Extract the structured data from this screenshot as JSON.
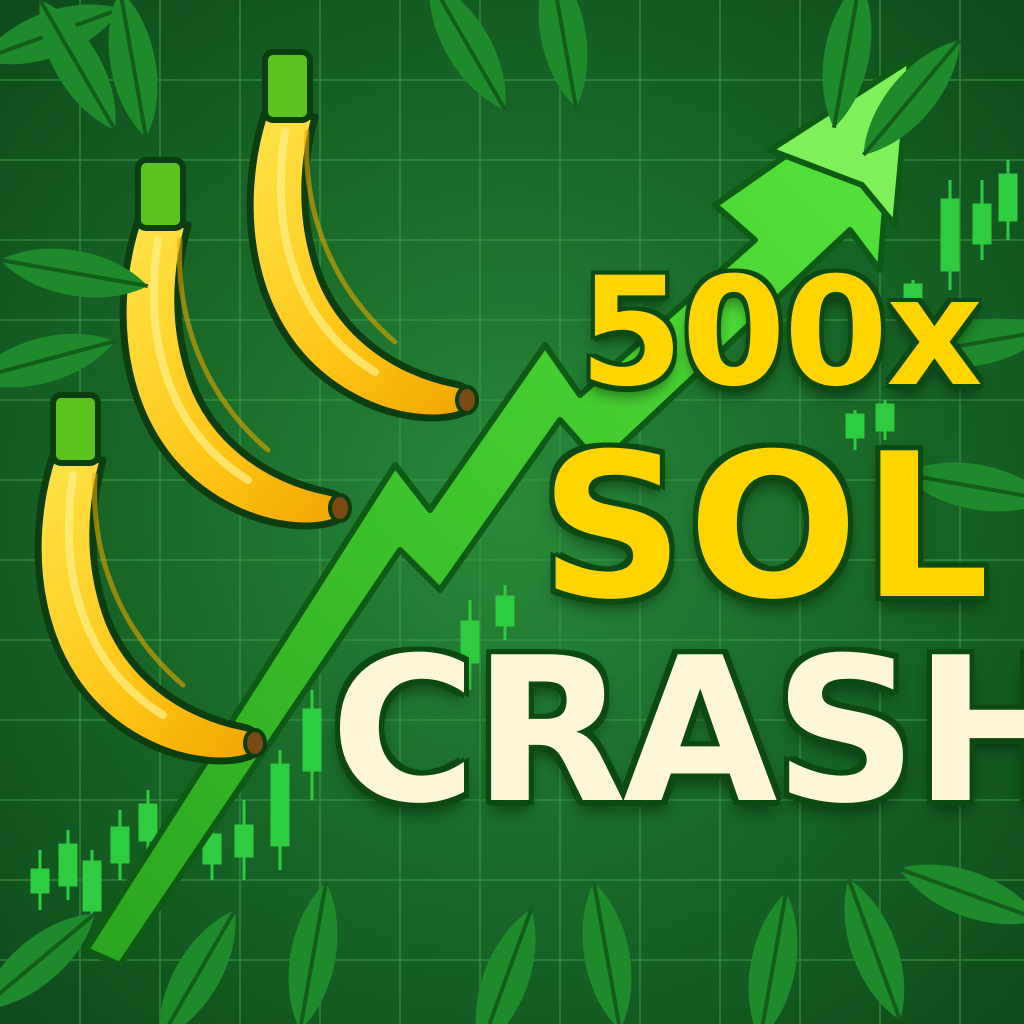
{
  "title": {
    "multiplier": "500x",
    "token": "SOL",
    "game": "CRASH"
  },
  "colors": {
    "background": "#1a6b2a",
    "grid": "#3a9a48",
    "arrow": "#3fd52a",
    "banana": "#ffcc1a",
    "title_yellow": "#ffd500",
    "title_cream": "#fdf6d8",
    "candle": "#2ecc40"
  },
  "icons": [
    "banana-icon",
    "arrow-up-icon",
    "candlestick-icon",
    "leaf-icon"
  ]
}
